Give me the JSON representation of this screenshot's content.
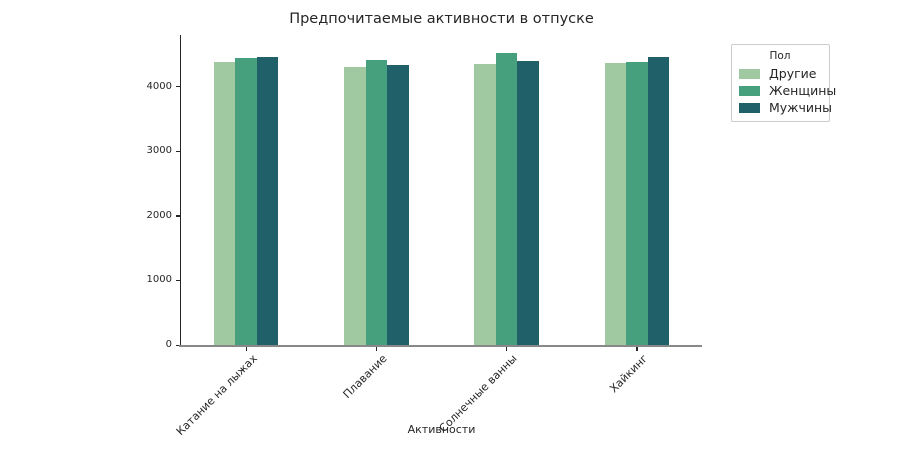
{
  "chart_data": {
    "type": "bar",
    "title": "Предпочитаемые активности в отпуске",
    "xlabel": "Активности",
    "ylabel": "",
    "categories": [
      "Катание на лыжах",
      "Плавание",
      "Солнечные ванны",
      "Хайкинг"
    ],
    "series": [
      {
        "name": "Другие",
        "color": "#a0c8a1",
        "values": [
          4380,
          4300,
          4355,
          4370
        ]
      },
      {
        "name": "Женщины",
        "color": "#46a07e",
        "values": [
          4450,
          4415,
          4520,
          4380
        ]
      },
      {
        "name": "Мужчины",
        "color": "#206069",
        "values": [
          4460,
          4330,
          4405,
          4455
        ]
      }
    ],
    "legend": {
      "title": "Пол",
      "position": "outside-upper-right"
    },
    "ylim": [
      0,
      4800
    ],
    "yticks": [
      0,
      1000,
      2000,
      3000,
      4000
    ],
    "grid": false
  },
  "colors": {
    "text": "#262626",
    "spine_left": "#262626",
    "spine_bottom": "#888888",
    "legend_border": "#cccccc",
    "background": "#ffffff"
  }
}
